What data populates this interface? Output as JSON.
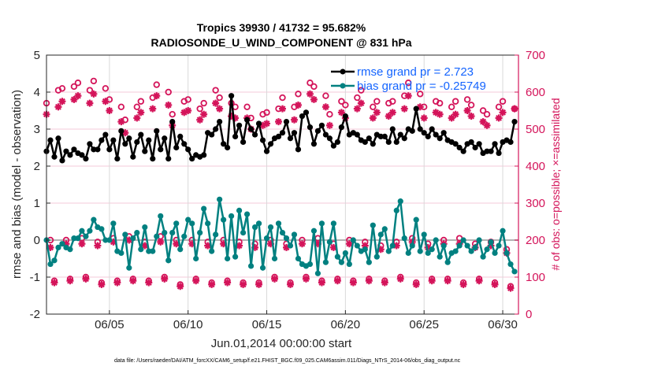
{
  "chart_data": {
    "type": "line",
    "title": [
      "Tropics 39930 / 41732 = 95.682%",
      "RADIOSONDE_U_WIND_COMPONENT @ 831 hPa"
    ],
    "xlabel": "Jun.01,2014 00:00:00 start",
    "ylabel_left": "rmse and bias (model - observation)",
    "ylabel_right": "# of obs: o=possible; ×=assimilated",
    "footer": "data file: /Users/raeder/DAI/ATM_forcXX/CAM6_setup/f.e21.FHIST_BGC.f09_025.CAM6assim.011/Diags_NTrS_2014-06/obs_diag_output.nc",
    "x_start": "2014-06-01T00:00",
    "x_step_hours": 6,
    "xlim_days": [
      0,
      30
    ],
    "x_ticks": [
      {
        "day": 4,
        "label": "06/05"
      },
      {
        "day": 9,
        "label": "06/10"
      },
      {
        "day": 14,
        "label": "06/15"
      },
      {
        "day": 19,
        "label": "06/20"
      },
      {
        "day": 24,
        "label": "06/25"
      },
      {
        "day": 29,
        "label": "06/30"
      }
    ],
    "ylim_left": [
      -2,
      5
    ],
    "y_ticks_left": [
      "-2",
      "-1",
      "0",
      "1",
      "2",
      "3",
      "4",
      "5"
    ],
    "ylim_right": [
      0,
      700
    ],
    "y_ticks_right": [
      "0",
      "100",
      "200",
      "300",
      "400",
      "500",
      "600",
      "700"
    ],
    "legend": {
      "placement": "top-right",
      "entries": [
        {
          "label": "rmse grand pr = 2.723",
          "color": "#000000"
        },
        {
          "label": "bias grand pr = -0.25749",
          "color": "#008080"
        }
      ]
    },
    "colors": {
      "rmse": "#000000",
      "bias": "#008080",
      "obs": "#d4145a",
      "zero_line": "#b3b3b3",
      "grid_v": "#d9d9d9",
      "grid_h": "#f4c9d9",
      "legend_text": "#1565ff"
    },
    "series": [
      {
        "name": "rmse",
        "axis": "left",
        "values": [
          2.4,
          2.7,
          2.25,
          2.75,
          2.15,
          2.4,
          2.3,
          2.45,
          2.35,
          2.3,
          2.2,
          2.6,
          2.45,
          2.45,
          2.7,
          2.85,
          2.45,
          2.7,
          2.2,
          2.95,
          2.6,
          2.75,
          2.25,
          2.65,
          2.85,
          2.4,
          2.7,
          2.2,
          2.95,
          2.45,
          2.75,
          2.2,
          3.2,
          2.5,
          2.8,
          2.6,
          2.45,
          2.2,
          2.3,
          2.25,
          2.3,
          2.9,
          2.85,
          3.0,
          3.2,
          2.6,
          2.5,
          3.9,
          2.8,
          3.1,
          2.65,
          3.25,
          3.0,
          2.85,
          3.15,
          2.7,
          2.4,
          2.6,
          2.75,
          2.8,
          2.9,
          3.2,
          2.75,
          2.9,
          2.45,
          3.35,
          3.45,
          3.05,
          2.6,
          2.95,
          3.1,
          2.85,
          2.75,
          2.55,
          2.65,
          3.05,
          3.35,
          2.85,
          2.9,
          2.85,
          2.7,
          2.65,
          2.75,
          2.6,
          2.85,
          2.8,
          2.8,
          2.65,
          3.0,
          2.65,
          2.85,
          2.75,
          3.0,
          2.95,
          3.55,
          3.0,
          2.9,
          2.8,
          3.0,
          2.85,
          2.75,
          2.9,
          2.7,
          2.65,
          2.6,
          2.5,
          2.4,
          2.6,
          2.65,
          2.5,
          2.6,
          2.35,
          2.4,
          2.4,
          2.6,
          2.35,
          2.65,
          2.7,
          2.65,
          3.2
        ]
      },
      {
        "name": "bias",
        "axis": "left",
        "values": [
          0.0,
          -0.65,
          -0.55,
          -0.2,
          -0.1,
          -0.2,
          -0.25,
          0.05,
          0.05,
          0.25,
          0.1,
          0.25,
          0.55,
          0.35,
          0.3,
          0.0,
          0.0,
          0.45,
          -0.3,
          -0.35,
          0.15,
          -0.75,
          0.05,
          0.2,
          -0.25,
          0.35,
          -0.3,
          -0.3,
          0.1,
          0.65,
          0.2,
          -0.55,
          0.2,
          0.45,
          -0.25,
          0.1,
          0.55,
          0.45,
          -0.5,
          0.2,
          0.85,
          0.45,
          -0.3,
          0.15,
          1.1,
          0.55,
          -0.5,
          0.65,
          -0.45,
          0.8,
          0.2,
          0.7,
          -0.7,
          0.35,
          0.45,
          -0.75,
          0.05,
          0.35,
          -0.5,
          0.45,
          0.2,
          0.05,
          -0.15,
          0.15,
          -0.5,
          -0.65,
          -0.7,
          -0.65,
          0.25,
          -0.9,
          0.45,
          -0.6,
          -0.05,
          0.45,
          -0.45,
          -0.6,
          -0.35,
          -0.65,
          0.0,
          -0.15,
          -0.3,
          -0.25,
          -0.6,
          0.4,
          -0.45,
          0.15,
          0.3,
          -0.3,
          -0.15,
          0.8,
          1.05,
          0.05,
          -0.35,
          -0.15,
          0.55,
          -0.3,
          0.15,
          -0.35,
          -0.25,
          0.0,
          -0.45,
          -0.15,
          -0.6,
          -0.35,
          -0.3,
          -0.15,
          0.0,
          -0.15,
          -0.3,
          -0.2,
          0.0,
          -0.45,
          -0.25,
          -0.05,
          -0.35,
          -0.15,
          0.25,
          -0.35,
          -0.65,
          -0.85
        ]
      },
      {
        "name": "obs possible",
        "axis": "right",
        "marker": "o",
        "values": [
          570,
          200,
          90,
          605,
          610,
          200,
          95,
          615,
          625,
          205,
          100,
          605,
          630,
          195,
          85,
          610,
          580,
          205,
          90,
          560,
          525,
          210,
          95,
          560,
          575,
          195,
          90,
          585,
          620,
          210,
          100,
          600,
          540,
          200,
          80,
          575,
          580,
          200,
          95,
          555,
          570,
          195,
          85,
          605,
          585,
          200,
          90,
          570,
          560,
          195,
          85,
          560,
          530,
          190,
          85,
          540,
          545,
          200,
          100,
          555,
          585,
          190,
          85,
          560,
          595,
          200,
          100,
          625,
          615,
          205,
          90,
          590,
          540,
          190,
          95,
          575,
          565,
          200,
          90,
          585,
          605,
          195,
          95,
          560,
          575,
          185,
          90,
          570,
          575,
          195,
          100,
          590,
          625,
          205,
          85,
          595,
          560,
          190,
          95,
          575,
          570,
          200,
          95,
          560,
          575,
          205,
          85,
          580,
          565,
          190,
          95,
          550,
          540,
          195,
          85,
          560,
          575,
          175,
          75,
          555
        ]
      },
      {
        "name": "obs assimilated",
        "axis": "right",
        "marker": "*",
        "values": [
          540,
          180,
          85,
          560,
          575,
          190,
          90,
          580,
          590,
          190,
          95,
          570,
          595,
          185,
          80,
          575,
          550,
          195,
          85,
          520,
          490,
          200,
          90,
          530,
          545,
          185,
          85,
          555,
          590,
          195,
          95,
          565,
          510,
          190,
          75,
          545,
          550,
          190,
          90,
          525,
          540,
          185,
          80,
          570,
          555,
          190,
          85,
          535,
          530,
          185,
          80,
          530,
          500,
          180,
          80,
          510,
          515,
          190,
          95,
          520,
          555,
          180,
          80,
          525,
          565,
          190,
          95,
          595,
          580,
          190,
          85,
          560,
          510,
          180,
          90,
          545,
          530,
          190,
          85,
          555,
          570,
          185,
          90,
          530,
          545,
          175,
          85,
          535,
          545,
          185,
          95,
          555,
          590,
          195,
          80,
          560,
          530,
          180,
          90,
          545,
          540,
          190,
          90,
          530,
          540,
          190,
          80,
          550,
          535,
          180,
          90,
          520,
          510,
          185,
          80,
          530,
          545,
          165,
          70,
          555
        ]
      }
    ]
  }
}
